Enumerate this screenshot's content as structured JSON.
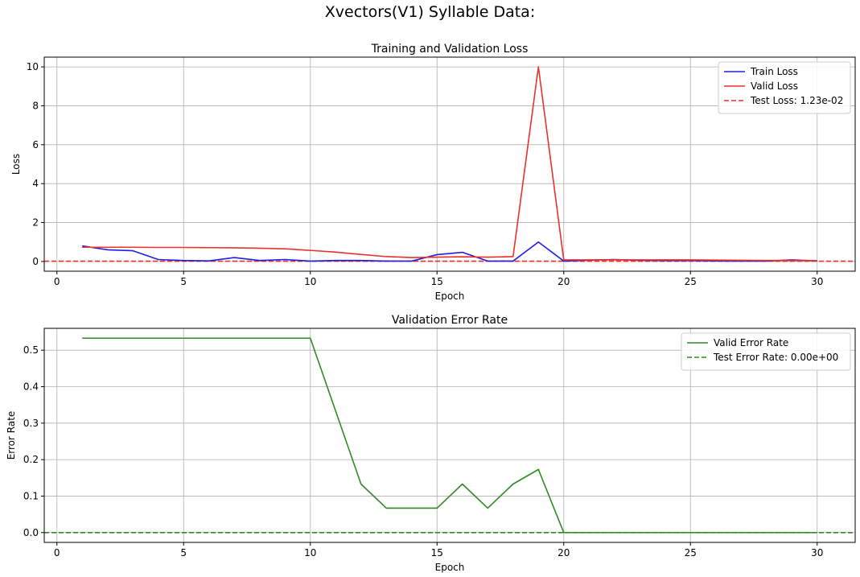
{
  "figure": {
    "title": "Xvectors(V1) Syllable Data:"
  },
  "chart_data": [
    {
      "type": "line",
      "title": "Training and Validation Loss",
      "xlabel": "Epoch",
      "ylabel": "Loss",
      "xlim": [
        -0.5,
        31.5
      ],
      "ylim": [
        -0.5,
        10.5
      ],
      "xticks": [
        0,
        5,
        10,
        15,
        20,
        25,
        30
      ],
      "yticks": [
        0,
        2,
        4,
        6,
        8,
        10
      ],
      "grid": true,
      "legend_position": "top-right",
      "x": [
        1,
        2,
        3,
        4,
        5,
        6,
        7,
        8,
        9,
        10,
        11,
        12,
        13,
        14,
        15,
        16,
        17,
        18,
        19,
        20,
        21,
        22,
        23,
        24,
        25,
        26,
        27,
        28,
        29,
        30
      ],
      "series": [
        {
          "name": "Train Loss",
          "color": "#1f1fe6",
          "style": "solid",
          "values": [
            0.8,
            0.6,
            0.55,
            0.1,
            0.05,
            0.03,
            0.2,
            0.05,
            0.1,
            0.02,
            0.05,
            0.05,
            0.02,
            0.02,
            0.35,
            0.47,
            0.02,
            0.02,
            1.0,
            0.02,
            0.07,
            0.1,
            0.06,
            0.05,
            0.05,
            0.03,
            0.02,
            0.02,
            0.08,
            0.03
          ]
        },
        {
          "name": "Valid Loss",
          "color": "#e8322a",
          "style": "solid",
          "values": [
            0.73,
            0.73,
            0.73,
            0.72,
            0.72,
            0.71,
            0.7,
            0.68,
            0.65,
            0.57,
            0.48,
            0.36,
            0.25,
            0.2,
            0.22,
            0.24,
            0.22,
            0.25,
            10.0,
            0.08,
            0.08,
            0.08,
            0.08,
            0.08,
            0.08,
            0.07,
            0.06,
            0.05,
            0.05,
            0.04
          ]
        }
      ],
      "hlines": [
        {
          "name": "Test Loss: 1.23e-02",
          "y": 0.0123,
          "color": "#e8322a",
          "style": "dashed"
        }
      ]
    },
    {
      "type": "line",
      "title": "Validation Error Rate",
      "xlabel": "Epoch",
      "ylabel": "Error Rate",
      "xlim": [
        -0.5,
        31.5
      ],
      "ylim": [
        -0.027,
        0.56
      ],
      "xticks": [
        0,
        5,
        10,
        15,
        20,
        25,
        30
      ],
      "yticks": [
        0.0,
        0.1,
        0.2,
        0.3,
        0.4,
        0.5
      ],
      "ytick_labels": [
        "0.0",
        "0.1",
        "0.2",
        "0.3",
        "0.4",
        "0.5"
      ],
      "grid": true,
      "legend_position": "top-right",
      "x": [
        1,
        2,
        3,
        4,
        5,
        6,
        7,
        8,
        9,
        10,
        11,
        12,
        13,
        14,
        15,
        16,
        17,
        18,
        19,
        20,
        21,
        22,
        23,
        24,
        25,
        26,
        27,
        28,
        29,
        30
      ],
      "series": [
        {
          "name": "Valid Error Rate",
          "color": "#2e8b22",
          "style": "solid",
          "values": [
            0.533,
            0.533,
            0.533,
            0.533,
            0.533,
            0.533,
            0.533,
            0.533,
            0.533,
            0.533,
            0.333,
            0.133,
            0.067,
            0.067,
            0.067,
            0.133,
            0.067,
            0.133,
            0.173,
            0,
            0,
            0,
            0,
            0,
            0,
            0,
            0,
            0,
            0,
            0
          ]
        }
      ],
      "hlines": [
        {
          "name": "Test Error Rate: 0.00e+00",
          "y": 0.0,
          "color": "#2e8b22",
          "style": "dashed"
        }
      ]
    }
  ]
}
